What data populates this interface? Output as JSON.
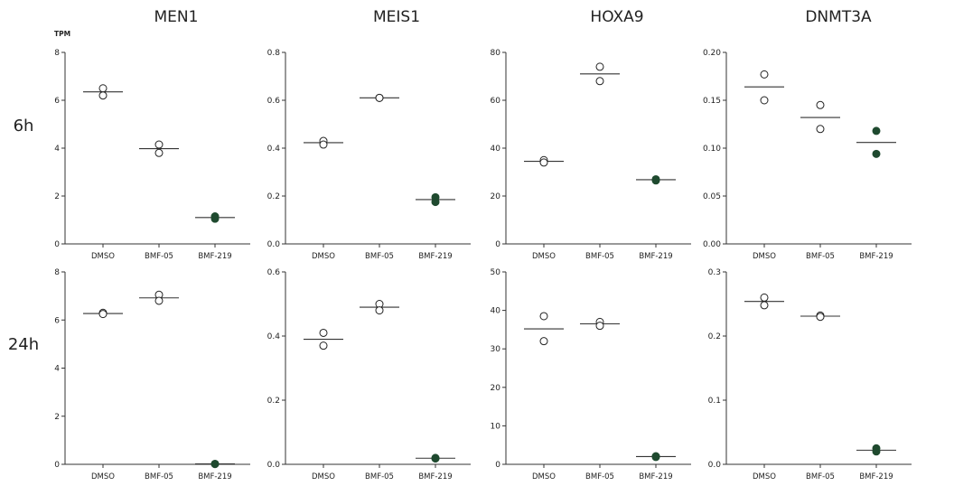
{
  "unit_label": "TPM",
  "columns": [
    "MEN1",
    "MEIS1",
    "HOXA9",
    "DNMT3A"
  ],
  "rows": [
    "6h",
    "24h"
  ],
  "colors": {
    "open_marker_stroke": "#222222",
    "filled_marker": "#1f4a2f",
    "axis": "#333333"
  },
  "chart_data": [
    {
      "type": "scatter",
      "gene": "MEN1",
      "timepoint": "6h",
      "categories": [
        "DMSO",
        "BMF-05",
        "BMF-219"
      ],
      "ylim": [
        0,
        8
      ],
      "yticks": [
        0,
        2,
        4,
        6,
        8
      ],
      "series": [
        {
          "category": "DMSO",
          "points": [
            6.5,
            6.2
          ],
          "mean": 6.35,
          "filled": false
        },
        {
          "category": "BMF-05",
          "points": [
            4.15,
            3.8
          ],
          "mean": 3.98,
          "filled": false
        },
        {
          "category": "BMF-219",
          "points": [
            1.15,
            1.05
          ],
          "mean": 1.1,
          "filled": true
        }
      ]
    },
    {
      "type": "scatter",
      "gene": "MEIS1",
      "timepoint": "6h",
      "categories": [
        "DMSO",
        "BMF-05",
        "BMF-219"
      ],
      "ylim": [
        0,
        0.8
      ],
      "yticks": [
        "0.0",
        "0.2",
        "0.4",
        "0.6",
        "0.8"
      ],
      "series": [
        {
          "category": "DMSO",
          "points": [
            0.43,
            0.415
          ],
          "mean": 0.423,
          "filled": false
        },
        {
          "category": "BMF-05",
          "points": [
            0.61,
            0.61
          ],
          "mean": 0.61,
          "filled": false
        },
        {
          "category": "BMF-219",
          "points": [
            0.195,
            0.175
          ],
          "mean": 0.185,
          "filled": true
        }
      ]
    },
    {
      "type": "scatter",
      "gene": "HOXA9",
      "timepoint": "6h",
      "categories": [
        "DMSO",
        "BMF-05",
        "BMF-219"
      ],
      "ylim": [
        0,
        80
      ],
      "yticks": [
        0,
        20,
        40,
        60,
        80
      ],
      "series": [
        {
          "category": "DMSO",
          "points": [
            35,
            34
          ],
          "mean": 34.5,
          "filled": false
        },
        {
          "category": "BMF-05",
          "points": [
            74,
            68
          ],
          "mean": 71,
          "filled": false
        },
        {
          "category": "BMF-219",
          "points": [
            27,
            26.5
          ],
          "mean": 26.8,
          "filled": true
        }
      ]
    },
    {
      "type": "scatter",
      "gene": "DNMT3A",
      "timepoint": "6h",
      "categories": [
        "DMSO",
        "BMF-05",
        "BMF-219"
      ],
      "ylim": [
        0,
        0.2
      ],
      "yticks": [
        "0.00",
        "0.05",
        "0.10",
        "0.15",
        "0.20"
      ],
      "series": [
        {
          "category": "DMSO",
          "points": [
            0.177,
            0.15
          ],
          "mean": 0.164,
          "filled": false
        },
        {
          "category": "BMF-05",
          "points": [
            0.145,
            0.12
          ],
          "mean": 0.132,
          "filled": false
        },
        {
          "category": "BMF-219",
          "points": [
            0.118,
            0.094
          ],
          "mean": 0.106,
          "filled": true
        }
      ]
    },
    {
      "type": "scatter",
      "gene": "MEN1",
      "timepoint": "24h",
      "categories": [
        "DMSO",
        "BMF-05",
        "BMF-219"
      ],
      "ylim": [
        0,
        8
      ],
      "yticks": [
        0,
        2,
        4,
        6,
        8
      ],
      "series": [
        {
          "category": "DMSO",
          "points": [
            6.3,
            6.25
          ],
          "mean": 6.27,
          "filled": false
        },
        {
          "category": "BMF-05",
          "points": [
            7.05,
            6.8
          ],
          "mean": 6.92,
          "filled": false
        },
        {
          "category": "BMF-219",
          "points": [
            0.02,
            0.01
          ],
          "mean": 0.015,
          "filled": true
        }
      ]
    },
    {
      "type": "scatter",
      "gene": "MEIS1",
      "timepoint": "24h",
      "categories": [
        "DMSO",
        "BMF-05",
        "BMF-219"
      ],
      "ylim": [
        0,
        0.6
      ],
      "yticks": [
        "0.0",
        "0.2",
        "0.4",
        "0.6"
      ],
      "series": [
        {
          "category": "DMSO",
          "points": [
            0.41,
            0.37
          ],
          "mean": 0.39,
          "filled": false
        },
        {
          "category": "BMF-05",
          "points": [
            0.5,
            0.48
          ],
          "mean": 0.49,
          "filled": false
        },
        {
          "category": "BMF-219",
          "points": [
            0.02,
            0.018
          ],
          "mean": 0.019,
          "filled": true
        }
      ]
    },
    {
      "type": "scatter",
      "gene": "HOXA9",
      "timepoint": "24h",
      "categories": [
        "DMSO",
        "BMF-05",
        "BMF-219"
      ],
      "ylim": [
        0,
        50
      ],
      "yticks": [
        0,
        10,
        20,
        30,
        40,
        50
      ],
      "series": [
        {
          "category": "DMSO",
          "points": [
            38.5,
            32
          ],
          "mean": 35.2,
          "filled": false
        },
        {
          "category": "BMF-05",
          "points": [
            37,
            36
          ],
          "mean": 36.5,
          "filled": false
        },
        {
          "category": "BMF-219",
          "points": [
            2.1,
            1.9
          ],
          "mean": 2.0,
          "filled": true
        }
      ]
    },
    {
      "type": "scatter",
      "gene": "DNMT3A",
      "timepoint": "24h",
      "categories": [
        "DMSO",
        "BMF-05",
        "BMF-219"
      ],
      "ylim": [
        0,
        0.3
      ],
      "yticks": [
        "0.0",
        "0.1",
        "0.2",
        "0.3"
      ],
      "series": [
        {
          "category": "DMSO",
          "points": [
            0.26,
            0.248
          ],
          "mean": 0.254,
          "filled": false
        },
        {
          "category": "BMF-05",
          "points": [
            0.232,
            0.23
          ],
          "mean": 0.231,
          "filled": false
        },
        {
          "category": "BMF-219",
          "points": [
            0.025,
            0.02
          ],
          "mean": 0.022,
          "filled": true
        }
      ]
    }
  ]
}
